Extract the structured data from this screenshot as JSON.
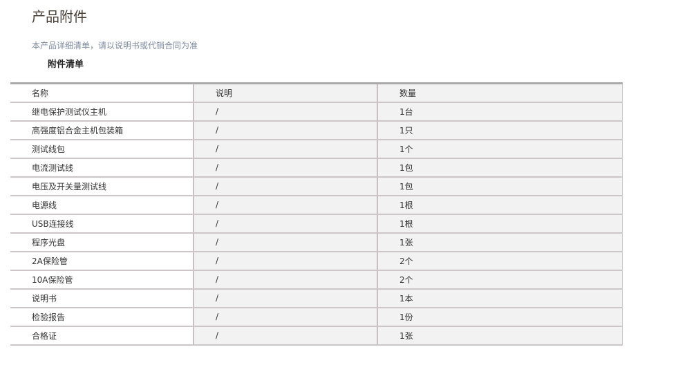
{
  "title": "产品附件",
  "subtitle": "本产品详细清单，请以说明书或代销合同为准",
  "list_title": "附件清单",
  "table": {
    "headers": [
      "名称",
      "说明",
      "数量"
    ],
    "rows": [
      [
        "继电保护测试仪主机",
        "/",
        "1台"
      ],
      [
        "高强度铝合金主机包装箱",
        "/",
        "1只"
      ],
      [
        "测试线包",
        "/",
        "1个"
      ],
      [
        "电流测试线",
        "/",
        "1包"
      ],
      [
        "电压及开关量测试线",
        "/",
        "1包"
      ],
      [
        "电源线",
        "/",
        "1根"
      ],
      [
        "USB连接线",
        "/",
        "1根"
      ],
      [
        "程序光盘",
        "/",
        "1张"
      ],
      [
        "2A保险管",
        "/",
        "2个"
      ],
      [
        "10A保险管",
        "/",
        "2个"
      ],
      [
        "说明书",
        "/",
        "1本"
      ],
      [
        "检验报告",
        "/",
        "1份"
      ],
      [
        "合格证",
        "/",
        "1张"
      ]
    ]
  }
}
